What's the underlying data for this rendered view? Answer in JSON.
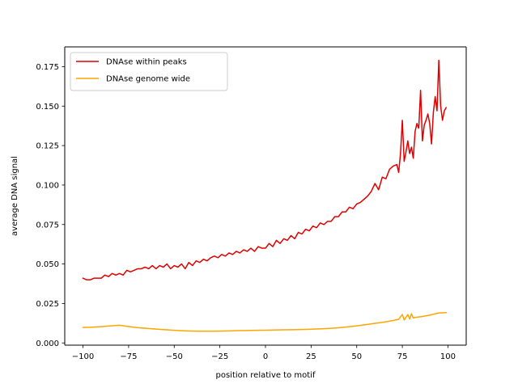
{
  "chart_data": {
    "type": "line",
    "title": "",
    "xlabel": "position relative to motif",
    "ylabel": "average DNA signal",
    "xlim": [
      -110,
      110
    ],
    "ylim": [
      -0.0014,
      0.1875
    ],
    "xticks": [
      -100,
      -75,
      -50,
      -25,
      0,
      25,
      50,
      75,
      100
    ],
    "xtick_labels": [
      "−100",
      "−75",
      "−50",
      "−25",
      "0",
      "25",
      "50",
      "75",
      "100"
    ],
    "yticks": [
      0.0,
      0.025,
      0.05,
      0.075,
      0.1,
      0.125,
      0.15,
      0.175
    ],
    "ytick_labels": [
      "0.000",
      "0.025",
      "0.050",
      "0.075",
      "0.100",
      "0.125",
      "0.150",
      "0.175"
    ],
    "grid": false,
    "legend_position": "upper-left",
    "series": [
      {
        "name": "DNAse within peaks",
        "color": "#e00000",
        "x": [
          -100,
          -98,
          -96,
          -94,
          -92,
          -90,
          -88,
          -86,
          -84,
          -82,
          -80,
          -78,
          -76,
          -74,
          -72,
          -70,
          -68,
          -66,
          -64,
          -62,
          -60,
          -58,
          -56,
          -54,
          -52,
          -50,
          -48,
          -46,
          -44,
          -42,
          -40,
          -38,
          -36,
          -34,
          -32,
          -30,
          -28,
          -26,
          -24,
          -22,
          -20,
          -18,
          -16,
          -14,
          -12,
          -10,
          -8,
          -6,
          -4,
          -2,
          0,
          2,
          4,
          6,
          8,
          10,
          12,
          14,
          16,
          18,
          20,
          22,
          24,
          26,
          28,
          30,
          32,
          34,
          36,
          38,
          40,
          42,
          44,
          46,
          48,
          50,
          52,
          54,
          56,
          58,
          60,
          62,
          64,
          66,
          68,
          70,
          72,
          73,
          74,
          75,
          76,
          77,
          78,
          79,
          80,
          81,
          82,
          83,
          84,
          85,
          86,
          87,
          88,
          89,
          90,
          91,
          92,
          93,
          94,
          95,
          96,
          97,
          98,
          99
        ],
        "values": [
          0.041,
          0.04,
          0.04,
          0.041,
          0.041,
          0.041,
          0.043,
          0.042,
          0.044,
          0.043,
          0.044,
          0.043,
          0.046,
          0.045,
          0.046,
          0.047,
          0.047,
          0.048,
          0.047,
          0.049,
          0.047,
          0.049,
          0.048,
          0.05,
          0.047,
          0.049,
          0.048,
          0.05,
          0.047,
          0.051,
          0.049,
          0.052,
          0.051,
          0.053,
          0.052,
          0.054,
          0.055,
          0.054,
          0.056,
          0.055,
          0.057,
          0.056,
          0.058,
          0.057,
          0.059,
          0.058,
          0.06,
          0.058,
          0.061,
          0.06,
          0.06,
          0.063,
          0.061,
          0.065,
          0.063,
          0.066,
          0.065,
          0.068,
          0.066,
          0.07,
          0.069,
          0.072,
          0.071,
          0.074,
          0.073,
          0.076,
          0.075,
          0.077,
          0.077,
          0.08,
          0.08,
          0.083,
          0.083,
          0.086,
          0.085,
          0.088,
          0.089,
          0.091,
          0.093,
          0.096,
          0.101,
          0.097,
          0.105,
          0.104,
          0.11,
          0.112,
          0.113,
          0.108,
          0.12,
          0.141,
          0.115,
          0.121,
          0.128,
          0.12,
          0.124,
          0.117,
          0.134,
          0.139,
          0.136,
          0.16,
          0.128,
          0.138,
          0.141,
          0.145,
          0.139,
          0.126,
          0.146,
          0.156,
          0.147,
          0.179,
          0.15,
          0.141,
          0.147,
          0.149
        ]
      },
      {
        "name": "DNAse genome wide",
        "color": "#ffa500",
        "x": [
          -100,
          -95,
          -90,
          -85,
          -80,
          -75,
          -70,
          -65,
          -60,
          -55,
          -50,
          -45,
          -40,
          -35,
          -30,
          -25,
          -20,
          -15,
          -10,
          -5,
          0,
          5,
          10,
          15,
          20,
          25,
          30,
          35,
          40,
          45,
          50,
          55,
          60,
          65,
          70,
          73,
          75,
          76,
          78,
          79,
          80,
          81,
          82,
          85,
          90,
          95,
          99
        ],
        "values": [
          0.0098,
          0.01,
          0.0103,
          0.0108,
          0.0112,
          0.0104,
          0.0097,
          0.0092,
          0.0088,
          0.0084,
          0.008,
          0.0077,
          0.0075,
          0.0074,
          0.0074,
          0.0075,
          0.0076,
          0.0078,
          0.0079,
          0.008,
          0.0081,
          0.0082,
          0.0083,
          0.0084,
          0.0085,
          0.0087,
          0.0089,
          0.0092,
          0.0096,
          0.0102,
          0.0108,
          0.0116,
          0.0124,
          0.0132,
          0.0142,
          0.015,
          0.018,
          0.0145,
          0.018,
          0.0152,
          0.0185,
          0.0158,
          0.0162,
          0.0166,
          0.0176,
          0.019,
          0.0192
        ]
      }
    ]
  }
}
